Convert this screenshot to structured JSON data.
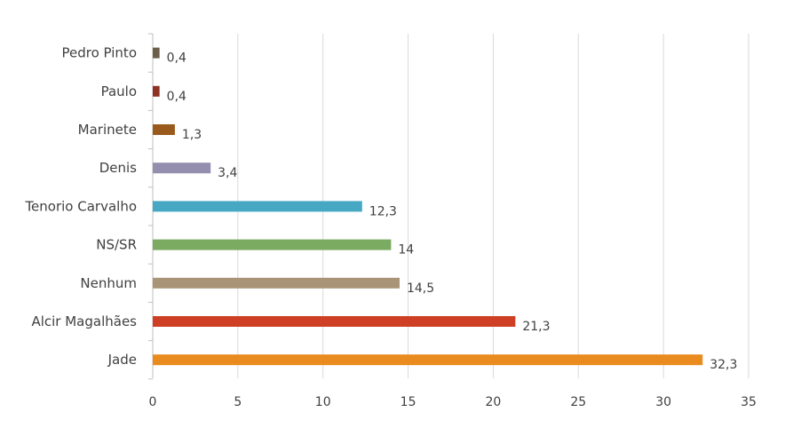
{
  "chart_data": {
    "type": "bar",
    "orientation": "horizontal",
    "categories": [
      "Jade",
      "Alcir Magalhães",
      "Nenhum",
      "NS/SR",
      "Tenorio Carvalho",
      "Denis",
      "Marinete",
      "Paulo",
      "Pedro Pinto"
    ],
    "values": [
      32.3,
      21.3,
      14.5,
      14,
      12.3,
      3.4,
      1.3,
      0.4,
      0.4
    ],
    "value_labels": [
      "32,3",
      "21,3",
      "14,5",
      "14",
      "12,3",
      "3,4",
      "1,3",
      "0,4",
      "0,4"
    ],
    "colors": [
      "#E98B1E",
      "#CF3F26",
      "#A99478",
      "#7BAA61",
      "#46A8C2",
      "#948EAF",
      "#9A5A1E",
      "#8E3224",
      "#6C5E4A"
    ],
    "xlim": [
      0,
      35
    ],
    "xticks": [
      0,
      5,
      10,
      15,
      20,
      25,
      30,
      35
    ],
    "xtick_labels": [
      "0",
      "5",
      "10",
      "15",
      "20",
      "25",
      "30",
      "35"
    ],
    "grid": "vertical",
    "legend": "none",
    "title": "",
    "xlabel": "",
    "ylabel": ""
  }
}
